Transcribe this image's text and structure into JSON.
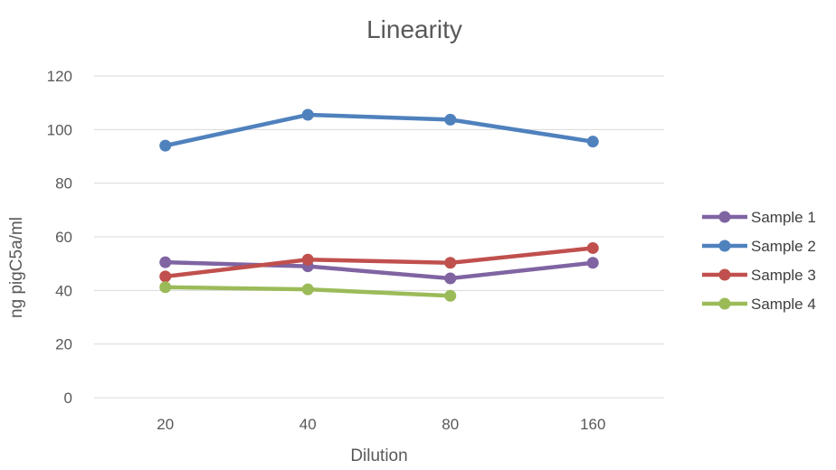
{
  "chart_data": {
    "type": "line",
    "title": "Linearity",
    "xlabel": "Dilution",
    "ylabel": "ng pigC5a/ml",
    "categories": [
      "20",
      "40",
      "80",
      "160"
    ],
    "ylim": [
      0,
      120
    ],
    "yticks": [
      0,
      20,
      40,
      60,
      80,
      100,
      120
    ],
    "grid": true,
    "legend_position": "right",
    "series": [
      {
        "name": "Sample 1",
        "color": "#8064a2",
        "values": [
          50.5,
          49,
          44.5,
          50.3
        ]
      },
      {
        "name": "Sample 2",
        "color": "#4f81bd",
        "values": [
          94,
          105.5,
          103.7,
          95.5
        ]
      },
      {
        "name": "Sample 3",
        "color": "#c0504d",
        "values": [
          45.2,
          51.5,
          50.3,
          55.8
        ]
      },
      {
        "name": "Sample 4",
        "color": "#9bbb59",
        "values": [
          41.2,
          40.4,
          38,
          null
        ]
      }
    ]
  }
}
